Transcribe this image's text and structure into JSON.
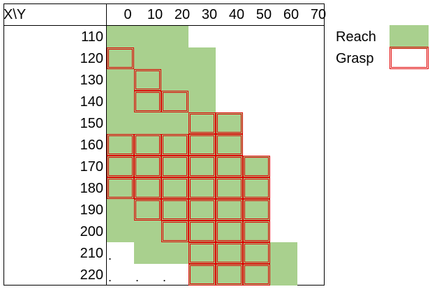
{
  "table": {
    "corner_label": "X\\Y",
    "y_headers": [
      "0",
      "10",
      "20",
      "30",
      "40",
      "50",
      "60",
      "70"
    ],
    "x_labels": [
      "110",
      "120",
      "130",
      "140",
      "150",
      "160",
      "170",
      "180",
      "190",
      "200",
      "210",
      "220"
    ],
    "reach": [
      [
        1,
        1,
        1,
        0,
        0,
        0,
        0,
        0
      ],
      [
        1,
        1,
        1,
        1,
        0,
        0,
        0,
        0
      ],
      [
        1,
        1,
        1,
        1,
        0,
        0,
        0,
        0
      ],
      [
        1,
        1,
        1,
        1,
        0,
        0,
        0,
        0
      ],
      [
        1,
        1,
        1,
        1,
        1,
        0,
        0,
        0
      ],
      [
        1,
        1,
        1,
        1,
        1,
        0,
        0,
        0
      ],
      [
        1,
        1,
        1,
        1,
        1,
        1,
        0,
        0
      ],
      [
        1,
        1,
        1,
        1,
        1,
        1,
        0,
        0
      ],
      [
        1,
        1,
        1,
        1,
        1,
        1,
        0,
        0
      ],
      [
        1,
        1,
        1,
        1,
        1,
        1,
        0,
        0
      ],
      [
        0,
        1,
        1,
        1,
        1,
        1,
        1,
        0
      ],
      [
        0,
        0,
        0,
        1,
        1,
        1,
        1,
        0
      ]
    ],
    "grasp": [
      [
        0,
        0,
        0,
        0,
        0,
        0,
        0,
        0
      ],
      [
        1,
        0,
        0,
        0,
        0,
        0,
        0,
        0
      ],
      [
        0,
        1,
        0,
        0,
        0,
        0,
        0,
        0
      ],
      [
        0,
        1,
        1,
        0,
        0,
        0,
        0,
        0
      ],
      [
        0,
        0,
        0,
        1,
        1,
        0,
        0,
        0
      ],
      [
        1,
        1,
        1,
        1,
        1,
        0,
        0,
        0
      ],
      [
        1,
        1,
        1,
        1,
        1,
        1,
        0,
        0
      ],
      [
        1,
        1,
        1,
        1,
        1,
        1,
        0,
        0
      ],
      [
        0,
        1,
        1,
        1,
        1,
        1,
        0,
        0
      ],
      [
        0,
        0,
        1,
        1,
        1,
        1,
        0,
        0
      ],
      [
        0,
        0,
        0,
        1,
        1,
        1,
        0,
        0
      ],
      [
        0,
        0,
        0,
        1,
        1,
        1,
        0,
        0
      ]
    ],
    "dots": [
      {
        "row": 10,
        "col": 0,
        "text": "."
      },
      {
        "row": 11,
        "col": 0,
        "text": "."
      },
      {
        "row": 11,
        "col": 1,
        "text": "."
      },
      {
        "row": 11,
        "col": 2,
        "text": "."
      }
    ]
  },
  "legend": {
    "reach_label": "Reach",
    "grasp_label": "Grasp",
    "reach_color": "#a9d08e",
    "grasp_color": "#e00000"
  }
}
